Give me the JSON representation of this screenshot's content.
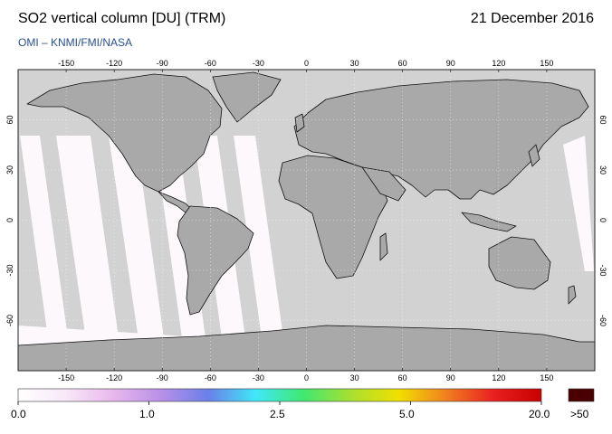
{
  "header": {
    "title": "SO2 vertical column [DU] (TRM)",
    "date": "21 December 2016",
    "credit": "OMI  –  KNMI/FMI/NASA"
  },
  "map": {
    "lon_ticks": [
      "-150",
      "-120",
      "-90",
      "-60",
      "-30",
      "0",
      "30",
      "60",
      "90",
      "120",
      "150"
    ],
    "lat_ticks": [
      "60",
      "30",
      "0",
      "-30",
      "-60"
    ],
    "colors": {
      "ocean": "#d2d2d2",
      "land": "#a9a9a9",
      "coast": "#111111",
      "swath": "#fcf8fc"
    }
  },
  "colorbar": {
    "labels": [
      "0.0",
      "1.0",
      "2.5",
      "5.0",
      "20.0"
    ],
    "overflow_label": ">50",
    "overflow_color": "#4a0000",
    "stops": [
      "#ffffff",
      "#f8e8f8",
      "#e8b8ec",
      "#b890e8",
      "#6a80e8",
      "#40e8f8",
      "#40e870",
      "#a8e030",
      "#f0e000",
      "#f08020",
      "#e82020",
      "#c80000"
    ]
  }
}
